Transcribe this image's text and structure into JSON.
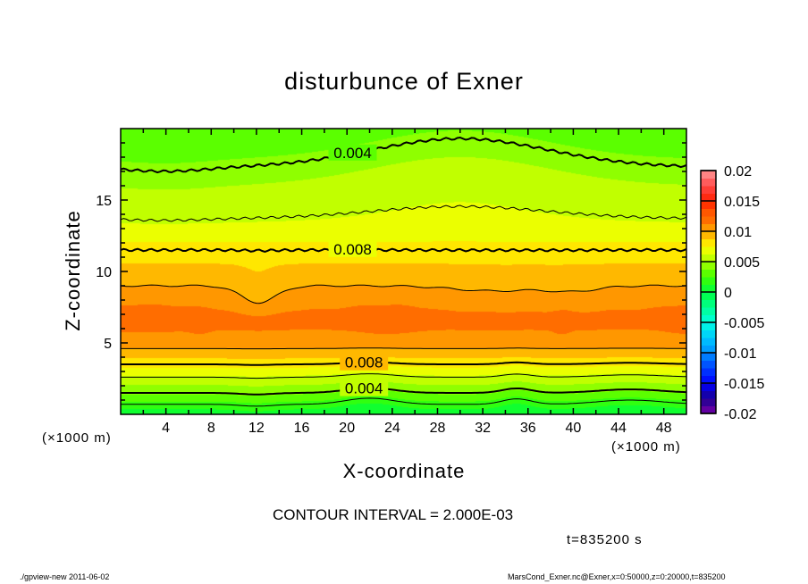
{
  "chart_data": {
    "type": "heatmap",
    "subtype": "filled-contour",
    "title": "disturbunce of Exner",
    "xlabel": "X-coordinate",
    "ylabel": "Z-coordinate",
    "x_unit": "(×1000 m)",
    "y_unit": "(×1000 m)",
    "xlim": [
      0,
      50
    ],
    "ylim": [
      0,
      20
    ],
    "xticks": [
      4,
      8,
      12,
      16,
      20,
      24,
      28,
      32,
      36,
      40,
      44,
      48
    ],
    "yticks": [
      5,
      10,
      15
    ],
    "colorbar": {
      "range": [
        -0.02,
        0.02
      ],
      "ticks": [
        "0.02",
        "0.015",
        "0.01",
        "0.005",
        "0",
        "-0.005",
        "-0.01",
        "-0.015",
        "-0.02"
      ],
      "tick_values": [
        0.02,
        0.015,
        0.01,
        0.005,
        0,
        -0.005,
        -0.01,
        -0.015,
        -0.02
      ],
      "band_step": 0.00125,
      "color_stops": [
        [
          -0.02,
          "#7a00a8"
        ],
        [
          -0.0175,
          "#1a0090"
        ],
        [
          -0.015,
          "#0000ff"
        ],
        [
          -0.0125,
          "#0040ff"
        ],
        [
          -0.01,
          "#0090ff"
        ],
        [
          -0.0075,
          "#00c8ff"
        ],
        [
          -0.005,
          "#00ffe0"
        ],
        [
          -0.0025,
          "#00ff90"
        ],
        [
          0,
          "#00ff40"
        ],
        [
          0.0025,
          "#40ff00"
        ],
        [
          0.004,
          "#80ff00"
        ],
        [
          0.005,
          "#a8ff00"
        ],
        [
          0.006,
          "#d0ff00"
        ],
        [
          0.0075,
          "#ffff00"
        ],
        [
          0.0085,
          "#ffd800"
        ],
        [
          0.0095,
          "#ffb400"
        ],
        [
          0.0105,
          "#ff9c00"
        ],
        [
          0.0115,
          "#ff7400"
        ],
        [
          0.0135,
          "#ff5000"
        ],
        [
          0.015,
          "#ff2000"
        ],
        [
          0.0175,
          "#ff4848"
        ],
        [
          0.02,
          "#ff9898"
        ]
      ]
    },
    "vertical_profile": {
      "z": [
        0,
        0.7,
        1.5,
        2.6,
        3.5,
        4.6,
        6.3,
        7.5,
        9,
        11.5,
        13.7,
        16,
        17.3,
        20
      ],
      "value": [
        0.0005,
        0.002,
        0.004,
        0.006,
        0.008,
        0.01,
        0.0116,
        0.0112,
        0.01,
        0.008,
        0.006,
        0.005,
        0.004,
        0.0028
      ]
    },
    "contours": [
      {
        "level": 0.002,
        "side": "lower",
        "thick": false
      },
      {
        "level": 0.004,
        "side": "lower",
        "thick": true
      },
      {
        "level": 0.006,
        "side": "lower",
        "thick": false
      },
      {
        "level": 0.008,
        "side": "lower",
        "thick": true
      },
      {
        "level": 0.01,
        "side": "lower",
        "thick": false
      },
      {
        "level": 0.01,
        "side": "upper",
        "thick": false
      },
      {
        "level": 0.008,
        "side": "upper",
        "thick": true
      },
      {
        "level": 0.006,
        "side": "upper",
        "thick": false
      },
      {
        "level": 0.004,
        "side": "upper",
        "thick": true
      }
    ],
    "contour_labels": [
      {
        "text": "0.004",
        "contour": 8,
        "x": 20.6
      },
      {
        "text": "0.008",
        "contour": 6,
        "x": 20.6
      },
      {
        "text": "0.008",
        "contour": 3,
        "x": 21.5
      },
      {
        "text": "0.004",
        "contour": 1,
        "x": 21.5
      }
    ],
    "contour_interval": "CONTOUR INTERVAL = 2.000E-03",
    "time": "t=835200 s"
  },
  "footer": {
    "left": "./gpview-new  2011-06-02",
    "right": "MarsCond_Exner.nc@Exner,x=0:50000,z=0:20000,t=835200"
  }
}
